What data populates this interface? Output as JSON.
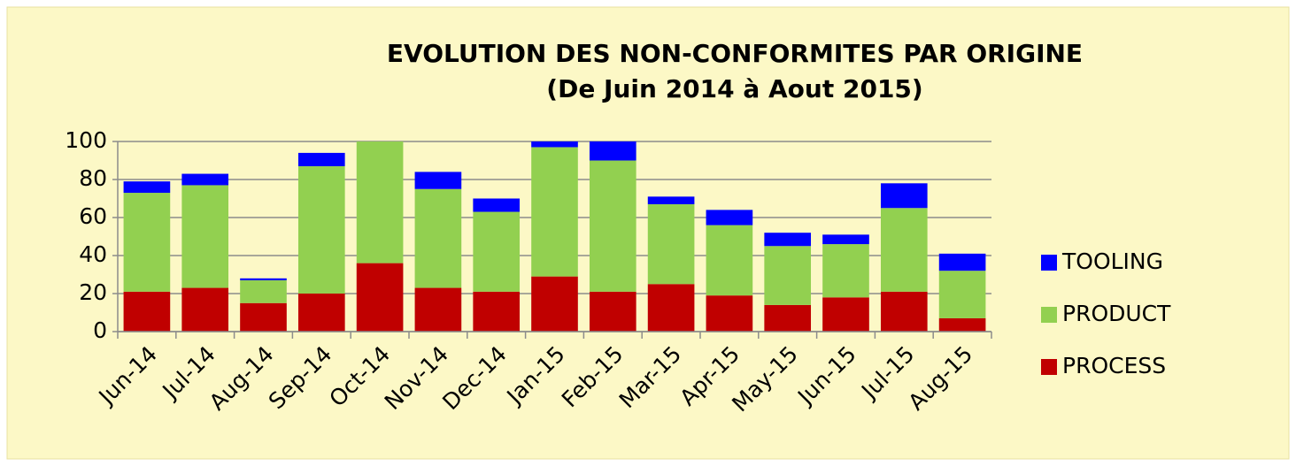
{
  "chart_data": {
    "type": "stacked_bar",
    "title": "EVOLUTION DES NON-CONFORMITES PAR ORIGINE",
    "subtitle": "(De Juin 2014 à Aout 2015)",
    "categories": [
      "Jun-14",
      "Jul-14",
      "Aug-14",
      "Sep-14",
      "Oct-14",
      "Nov-14",
      "Dec-14",
      "Jan-15",
      "Feb-15",
      "Mar-15",
      "Apr-15",
      "May-15",
      "Jun-15",
      "Jul-15",
      "Aug-15"
    ],
    "series": [
      {
        "name": "PROCESS",
        "color": "#c00000",
        "values": [
          21,
          23,
          15,
          20,
          36,
          23,
          21,
          29,
          21,
          25,
          19,
          14,
          18,
          21,
          7
        ]
      },
      {
        "name": "PRODUCT",
        "color": "#92d050",
        "values": [
          52,
          54,
          12,
          67,
          64,
          52,
          42,
          68,
          69,
          42,
          37,
          31,
          28,
          44,
          25
        ]
      },
      {
        "name": "TOOLING",
        "color": "#0000ff",
        "values": [
          6,
          6,
          1,
          7,
          0,
          9,
          7,
          3,
          10,
          4,
          8,
          7,
          5,
          13,
          9
        ]
      }
    ],
    "ylim": [
      0,
      100
    ],
    "yticks": [
      0,
      20,
      40,
      60,
      80,
      100
    ],
    "grid": true,
    "legend": "right"
  }
}
